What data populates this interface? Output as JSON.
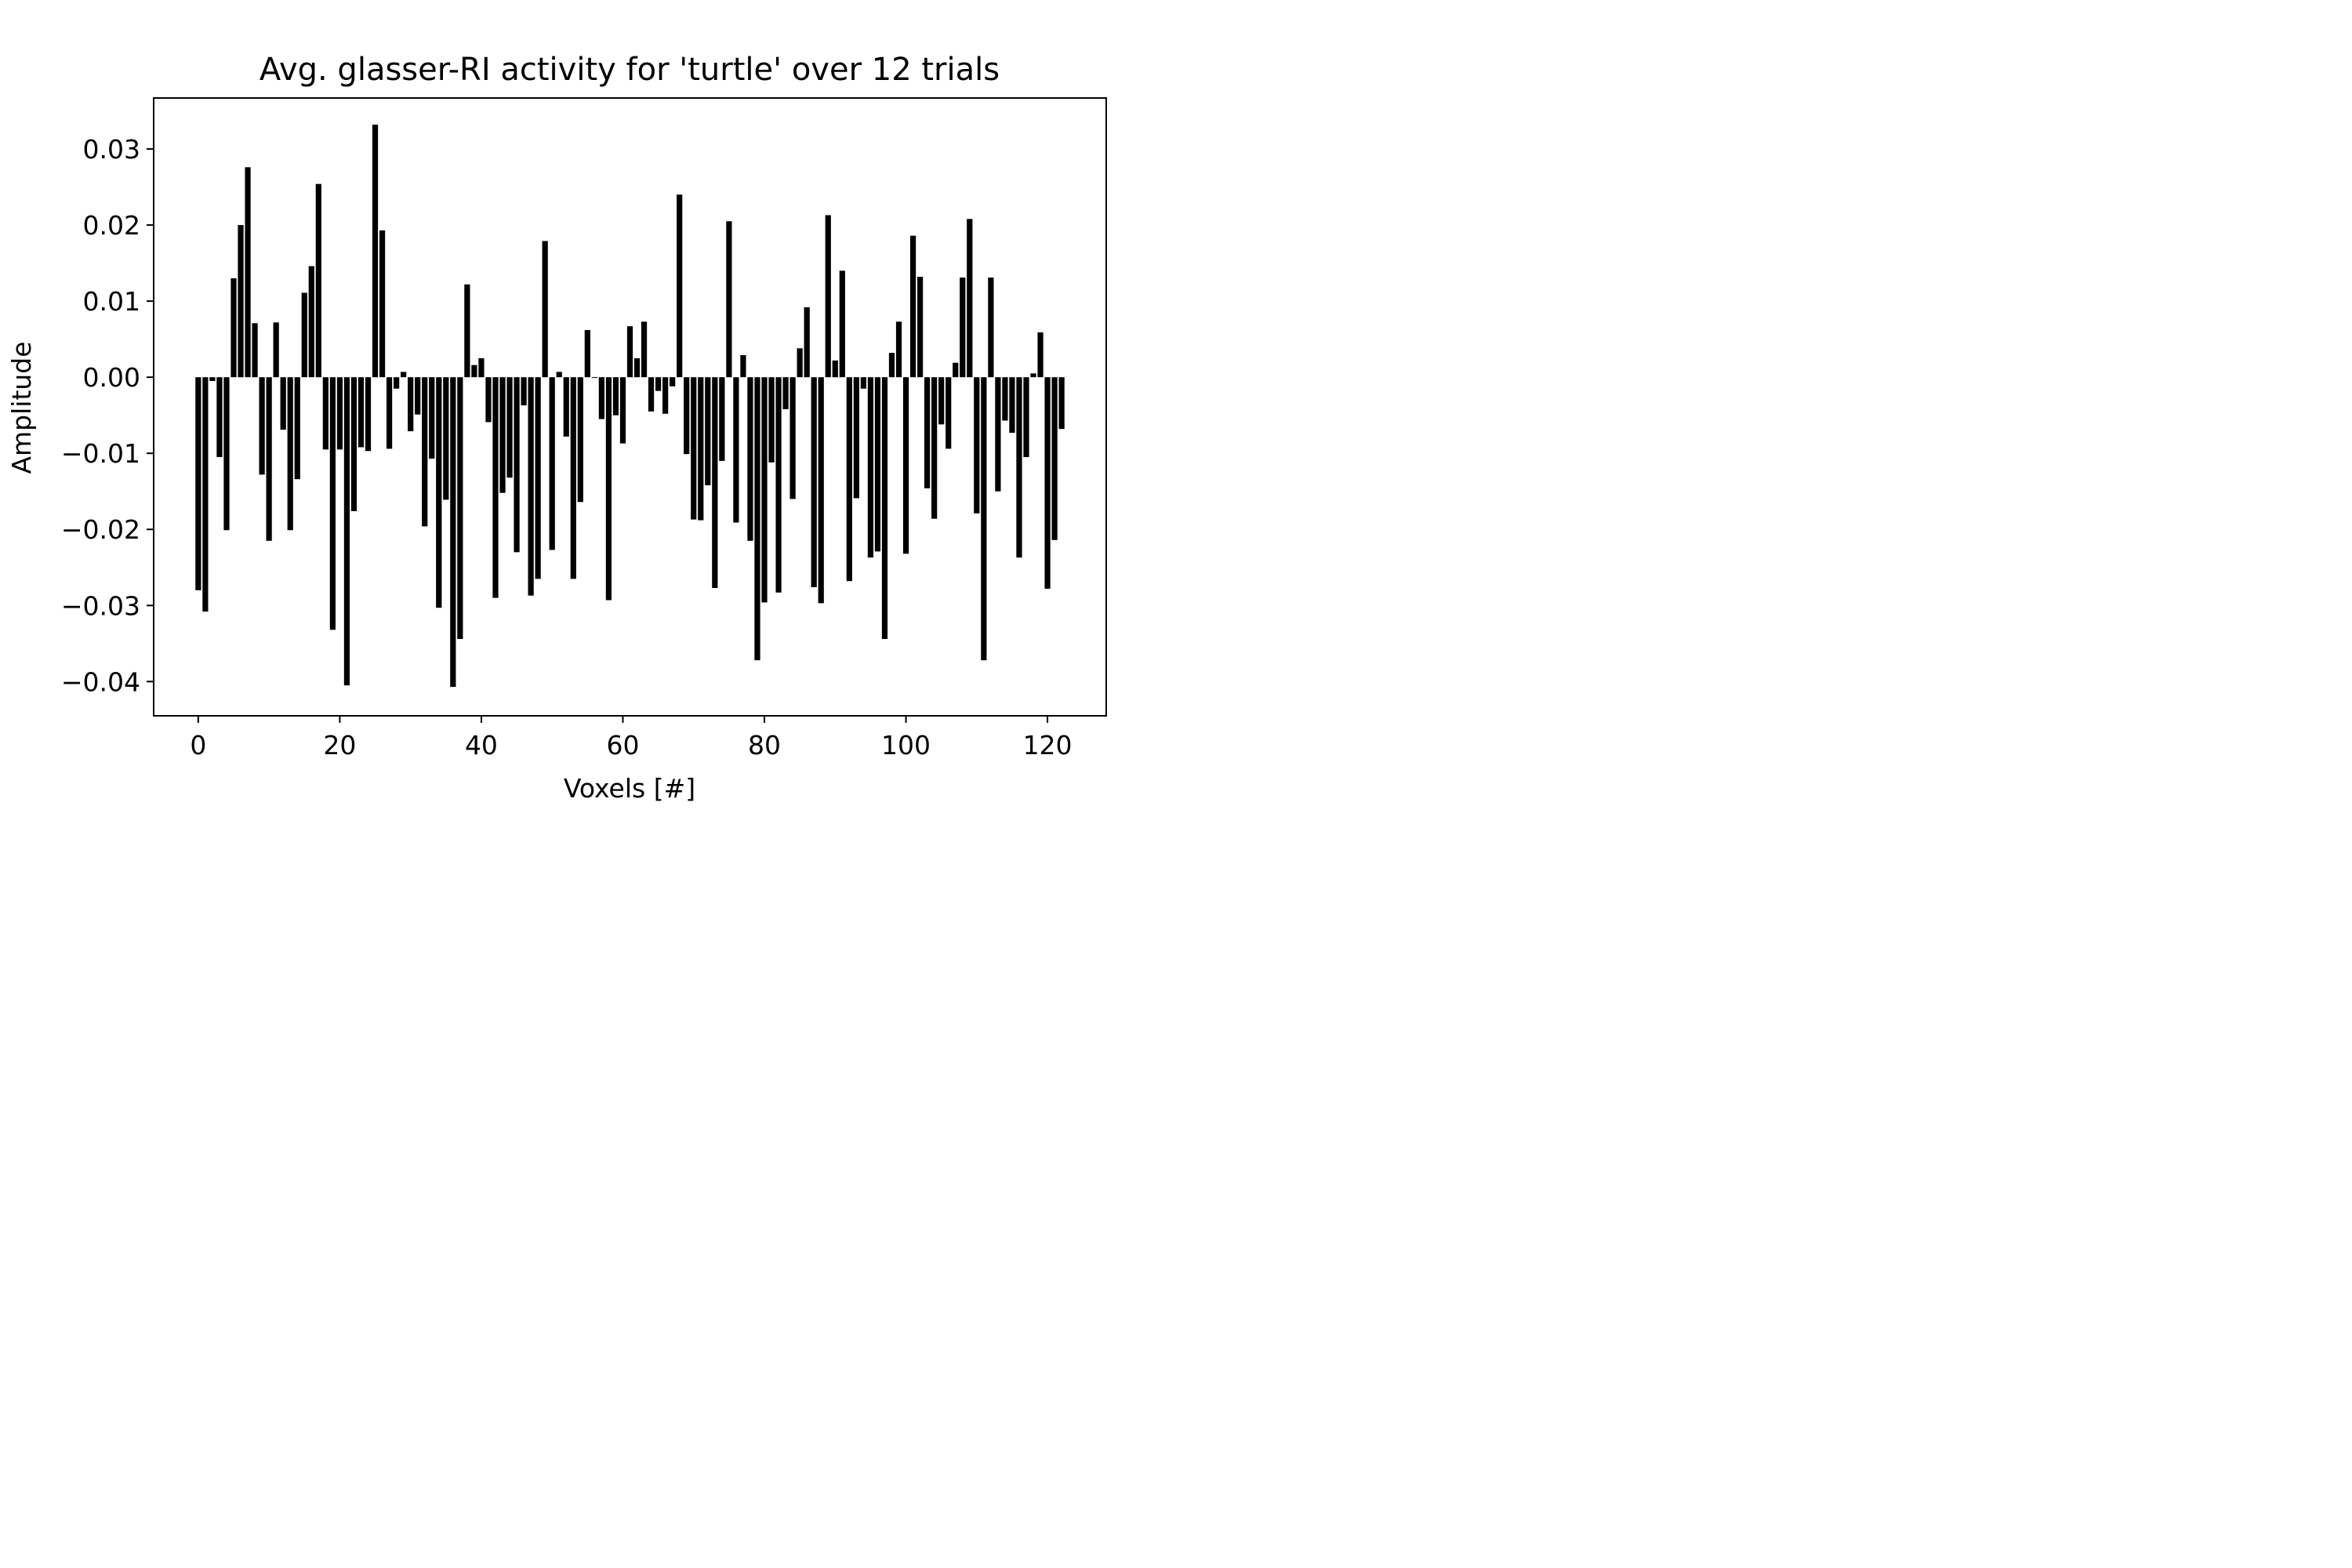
{
  "chart_data": {
    "type": "bar",
    "title": "Avg. glasser-RI activity for 'turtle' over 12 trials",
    "xlabel": "Voxels [#]",
    "ylabel": "Amplitude",
    "xlim": [
      -6.3,
      128.3
    ],
    "ylim": [
      -0.0445,
      0.0367
    ],
    "xticks": [
      0,
      20,
      40,
      60,
      80,
      100,
      120
    ],
    "xtick_labels": [
      "0",
      "20",
      "40",
      "60",
      "80",
      "100",
      "120"
    ],
    "yticks": [
      0.03,
      0.02,
      0.01,
      0.0,
      -0.01,
      -0.02,
      -0.03,
      -0.04
    ],
    "ytick_labels": [
      "0.03",
      "0.02",
      "0.01",
      "0.00",
      "−0.01",
      "−0.02",
      "−0.03",
      "−0.04"
    ],
    "grid": false,
    "bar_color": "#000000",
    "bar_width": 0.8,
    "values": [
      -0.028,
      -0.0308,
      -0.0005,
      -0.0105,
      -0.0201,
      0.013,
      0.02,
      0.0276,
      0.0071,
      -0.0128,
      -0.0215,
      0.0072,
      -0.0069,
      -0.0201,
      -0.0134,
      0.0111,
      0.0146,
      0.0254,
      -0.0095,
      -0.0332,
      -0.0095,
      -0.0405,
      -0.0176,
      -0.0092,
      -0.0097,
      0.0332,
      0.0193,
      -0.0094,
      -0.0015,
      0.0007,
      -0.0071,
      -0.0049,
      -0.0196,
      -0.0107,
      -0.0303,
      -0.0161,
      -0.0407,
      -0.0344,
      0.0122,
      0.0016,
      0.0025,
      -0.0059,
      -0.029,
      -0.0152,
      -0.0132,
      -0.023,
      -0.0037,
      -0.0287,
      -0.0265,
      0.0179,
      -0.0227,
      0.0007,
      -0.0078,
      -0.0265,
      -0.0164,
      0.0062,
      -0.0001,
      -0.0055,
      -0.0293,
      -0.005,
      -0.0087,
      0.0067,
      0.0025,
      0.0073,
      -0.0045,
      -0.0018,
      -0.0048,
      -0.0012,
      0.024,
      -0.0101,
      -0.0187,
      -0.0188,
      -0.0142,
      -0.0277,
      -0.011,
      0.0205,
      -0.0191,
      0.0029,
      -0.0215,
      -0.0372,
      -0.0296,
      -0.0112,
      -0.0283,
      -0.0042,
      -0.016,
      0.0038,
      0.0092,
      -0.0276,
      -0.0297,
      0.0213,
      0.0022,
      0.014,
      -0.0268,
      -0.0159,
      -0.0015,
      -0.0237,
      -0.0229,
      -0.0344,
      0.0032,
      0.0073,
      -0.0232,
      0.0186,
      0.0132,
      -0.0146,
      -0.0186,
      -0.0062,
      -0.0094,
      0.0019,
      0.0131,
      0.0208,
      -0.0179,
      -0.0372,
      0.0131,
      -0.015,
      -0.0057,
      -0.0073,
      -0.0237,
      -0.0105,
      0.0005,
      0.0059,
      -0.0278,
      -0.0214,
      -0.0068
    ]
  }
}
